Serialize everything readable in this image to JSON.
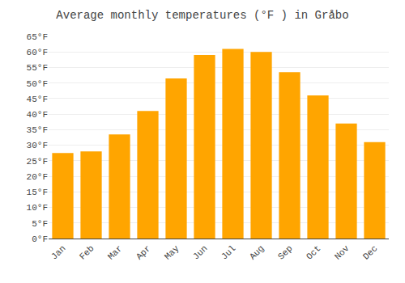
{
  "chart_data": {
    "type": "bar",
    "title": "Average monthly temperatures (°F ) in Gråbo",
    "categories": [
      "Jan",
      "Feb",
      "Mar",
      "Apr",
      "May",
      "Jun",
      "Jul",
      "Aug",
      "Sep",
      "Oct",
      "Nov",
      "Dec"
    ],
    "values": [
      27.5,
      28.0,
      33.5,
      41.0,
      51.5,
      59.0,
      61.0,
      60.0,
      53.5,
      46.0,
      37.0,
      31.0
    ],
    "color": "#FFA500",
    "ylim": [
      0,
      65
    ],
    "yticks": [
      {
        "value": 0,
        "label": "0°F"
      },
      {
        "value": 5,
        "label": "5°F"
      },
      {
        "value": 10,
        "label": "10°F"
      },
      {
        "value": 15,
        "label": "15°F"
      },
      {
        "value": 20,
        "label": "20°F"
      },
      {
        "value": 25,
        "label": "25°F"
      },
      {
        "value": 30,
        "label": "30°F"
      },
      {
        "value": 35,
        "label": "35°F"
      },
      {
        "value": 40,
        "label": "40°F"
      },
      {
        "value": 45,
        "label": "45°F"
      },
      {
        "value": 50,
        "label": "50°F"
      },
      {
        "value": 55,
        "label": "55°F"
      },
      {
        "value": 60,
        "label": "60°F"
      },
      {
        "value": 65,
        "label": "65°F"
      }
    ],
    "grid": true
  }
}
